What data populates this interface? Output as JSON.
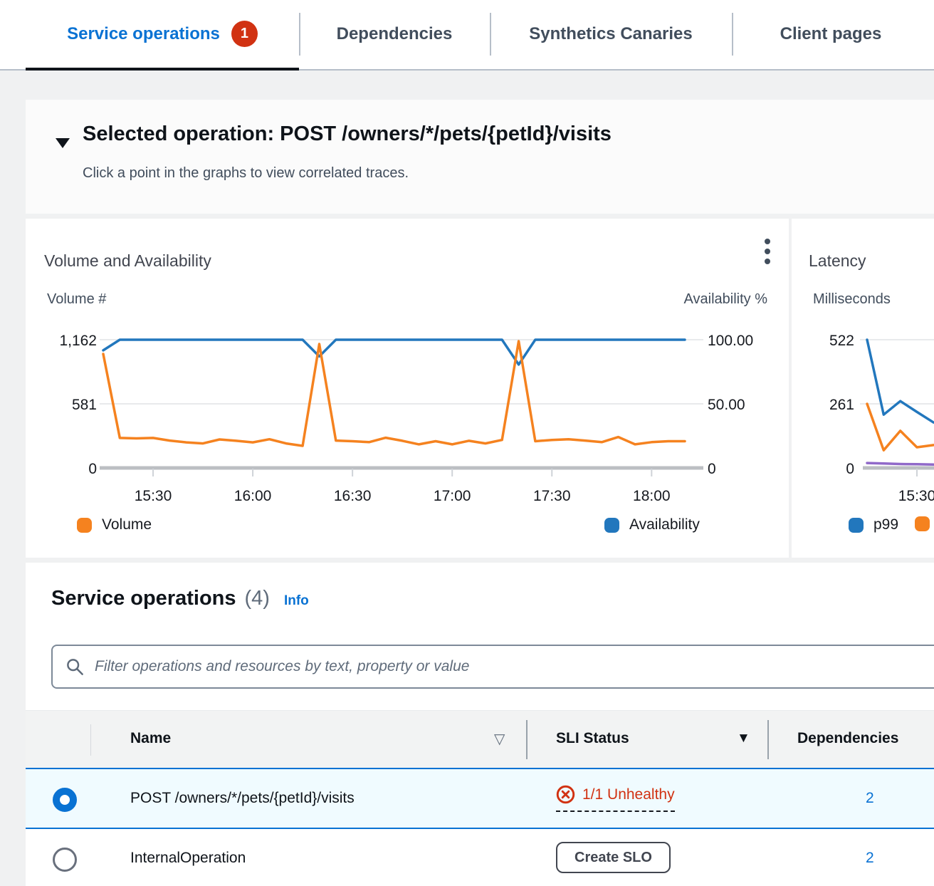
{
  "colors": {
    "accent_blue": "#0972d3",
    "badge_red": "#d13212",
    "unhealthy_red": "#d13212",
    "active_tab_underline": "#0f141a",
    "selected_row_bg": "#f0fbff",
    "chart_blue": "#2277bd",
    "chart_orange": "#f5821f",
    "chart_purple": "#9069c9"
  },
  "icons": {
    "filter_glyph": "▽",
    "sort_glyph": "▼"
  },
  "tabs": {
    "items": [
      {
        "label": "Service operations",
        "badge": "1",
        "active": true
      },
      {
        "label": "Dependencies",
        "active": false
      },
      {
        "label": "Synthetics Canaries",
        "active": false
      },
      {
        "label": "Client pages",
        "active": false
      }
    ]
  },
  "selected_operation": {
    "title": "Selected operation: POST /owners/*/pets/{petId}/visits",
    "subtitle": "Click a point in the graphs to view correlated traces."
  },
  "chart_data": [
    {
      "type": "line",
      "title": "Volume and Availability",
      "left_axis": {
        "label": "Volume #",
        "ticks": [
          "1,162",
          "581",
          "0"
        ],
        "max": 1162,
        "min": 0
      },
      "right_axis": {
        "label": "Availability %",
        "ticks": [
          "100.00",
          "50.00",
          "0"
        ],
        "max": 100,
        "min": 0
      },
      "x_ticks": [
        "15:30",
        "16:00",
        "16:30",
        "17:00",
        "17:30",
        "18:00"
      ],
      "x_times": [
        "15:15",
        "15:20",
        "15:25",
        "15:30",
        "15:35",
        "15:40",
        "15:45",
        "15:50",
        "15:55",
        "16:00",
        "16:05",
        "16:10",
        "16:15",
        "16:20",
        "16:25",
        "16:30",
        "16:35",
        "16:40",
        "16:45",
        "16:50",
        "16:55",
        "17:00",
        "17:05",
        "17:10",
        "17:15",
        "17:20",
        "17:25",
        "17:30",
        "17:35",
        "17:40",
        "17:45",
        "17:50",
        "17:55",
        "18:00",
        "18:05",
        "18:10"
      ],
      "series": [
        {
          "name": "Volume",
          "axis": "left",
          "color": "#f5821f",
          "values": [
            1033,
            272,
            268,
            272,
            248,
            232,
            222,
            258,
            246,
            232,
            260,
            222,
            200,
            1123,
            248,
            242,
            234,
            274,
            246,
            214,
            242,
            214,
            246,
            222,
            254,
            1149,
            242,
            254,
            260,
            248,
            234,
            280,
            214,
            234,
            242,
            242
          ]
        },
        {
          "name": "Availability",
          "axis": "right",
          "color": "#2277bd",
          "values": [
            91.7,
            100,
            100,
            100,
            100,
            100,
            100,
            100,
            100,
            100,
            100,
            100,
            100,
            87,
            100,
            100,
            100,
            100,
            100,
            100,
            100,
            100,
            100,
            100,
            100,
            80.6,
            100,
            100,
            100,
            100,
            100,
            100,
            100,
            100,
            100,
            100
          ]
        }
      ],
      "legend_position": "bottom",
      "grid": true
    },
    {
      "type": "line",
      "title": "Latency",
      "left_axis": {
        "label": "Milliseconds",
        "ticks": [
          "522",
          "261",
          "0"
        ],
        "max": 522,
        "min": 0
      },
      "x_ticks": [
        "15:30"
      ],
      "x_times": [
        "15:15",
        "15:20",
        "15:25",
        "15:30",
        "15:35"
      ],
      "series": [
        {
          "name": "p99",
          "axis": "left",
          "color": "#2277bd",
          "values": [
            522,
            217,
            272,
            228,
            185
          ]
        },
        {
          "name": "",
          "axis": "left",
          "color": "#f5821f",
          "values": [
            261,
            72,
            151,
            84,
            93
          ]
        },
        {
          "name": "",
          "axis": "left",
          "color": "#9069c9",
          "values": [
            20,
            18,
            16,
            15,
            14
          ]
        }
      ],
      "legend_position": "bottom",
      "note": "card clipped at right edge of viewport",
      "grid": true
    }
  ],
  "operations_table": {
    "title": "Service operations",
    "count": "(4)",
    "info_link": "Info",
    "filter_placeholder": "Filter operations and resources by text, property or value",
    "columns": [
      "Name",
      "SLI Status",
      "Dependencies"
    ],
    "rows": [
      {
        "name": "POST /owners/*/pets/{petId}/visits",
        "sli_status": "1/1 Unhealthy",
        "sli_state": "unhealthy",
        "dependencies": "2",
        "selected": true
      },
      {
        "name": "InternalOperation",
        "sli_action": "Create SLO",
        "dependencies": "2",
        "selected": false
      }
    ]
  }
}
